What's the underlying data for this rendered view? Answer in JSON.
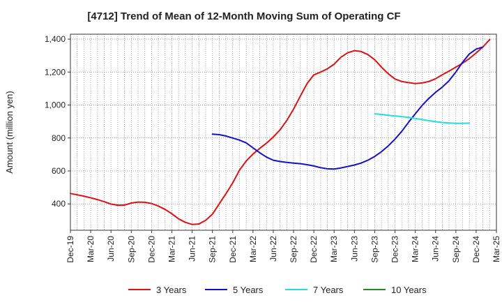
{
  "chart_data": {
    "type": "line",
    "title": "[4712]  Trend of Mean of 12-Month Moving Sum of Operating CF",
    "ylabel": "Amount (million yen)",
    "xlabel": "",
    "ylim": [
      240,
      1430
    ],
    "yticks": [
      400,
      600,
      800,
      1000,
      1200,
      1400
    ],
    "ytick_labels": [
      "400",
      "600",
      "800",
      "1,000",
      "1,200",
      "1,400"
    ],
    "x_start": "Dec-19",
    "x_end": "Mar-25",
    "xtick_labels": [
      "Dec-19",
      "Mar-20",
      "Jun-20",
      "Sep-20",
      "Dec-20",
      "Mar-21",
      "Jun-21",
      "Sep-21",
      "Dec-21",
      "Mar-22",
      "Jun-22",
      "Sep-22",
      "Dec-22",
      "Mar-23",
      "Jun-23",
      "Sep-23",
      "Dec-23",
      "Mar-24",
      "Jun-24",
      "Sep-24",
      "Dec-24",
      "Mar-25"
    ],
    "grid": true,
    "legend_position": "bottom",
    "series": [
      {
        "name": "3 Years",
        "color": "#dd1111",
        "start_month": 0,
        "values": [
          463,
          455,
          447,
          437,
          426,
          413,
          399,
          392,
          393,
          405,
          411,
          410,
          402,
          387,
          366,
          340,
          309,
          288,
          275,
          278,
          300,
          338,
          400,
          462,
          528,
          605,
          661,
          703,
          737,
          769,
          806,
          850,
          906,
          975,
          1054,
          1130,
          1183,
          1200,
          1220,
          1248,
          1290,
          1317,
          1330,
          1325,
          1306,
          1275,
          1230,
          1190,
          1158,
          1143,
          1136,
          1130,
          1134,
          1143,
          1160,
          1184,
          1206,
          1230,
          1254,
          1282,
          1316,
          1353,
          1397
        ]
      },
      {
        "name": "5 Years",
        "color": "#1111cc",
        "start_month": 21,
        "values": [
          823,
          820,
          812,
          800,
          787,
          770,
          740,
          710,
          684,
          665,
          657,
          652,
          648,
          644,
          638,
          630,
          620,
          613,
          612,
          618,
          627,
          636,
          648,
          665,
          688,
          717,
          752,
          793,
          840,
          895,
          947,
          997,
          1040,
          1077,
          1109,
          1148,
          1200,
          1260,
          1310,
          1340,
          1352
        ]
      },
      {
        "name": "7 Years",
        "color": "#22dddd",
        "start_month": 45,
        "values": [
          947,
          943,
          938,
          934,
          930,
          925,
          919,
          912,
          905,
          899,
          894,
          891,
          889,
          889,
          890
        ]
      },
      {
        "name": "10 Years",
        "color": "#228822",
        "start_month": 0,
        "values": []
      }
    ]
  }
}
